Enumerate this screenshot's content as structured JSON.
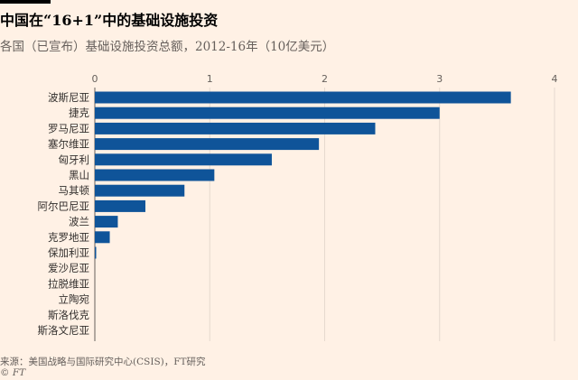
{
  "header": {
    "title": "中国在“16+1”中的基础设施投资",
    "subtitle": "各国（已宣布）基础设施投资总额，2012-16年（10亿美元）"
  },
  "footer": {
    "source": "来源：美国战略与国际研究中心(CSIS)，FT研究",
    "credit": "© FT"
  },
  "colors": {
    "bar": "#0f5499",
    "background": "#fff1e5",
    "grid": "#e6d9ce"
  },
  "chart_data": {
    "type": "bar",
    "orientation": "horizontal",
    "title": "中国在“16+1”中的基础设施投资",
    "subtitle": "各国（已宣布）基础设施投资总额，2012-16年（10亿美元）",
    "xlabel": "",
    "ylabel": "",
    "xlim": [
      0,
      4
    ],
    "xticks": [
      0,
      1,
      2,
      3,
      4
    ],
    "xtick_labels": [
      "0",
      "1",
      "2",
      "3",
      "4"
    ],
    "axis_position": "top",
    "grid": true,
    "categories": [
      "波斯尼亚",
      "捷克",
      "罗马尼亚",
      "塞尔维亚",
      "匈牙利",
      "黑山",
      "马其顿",
      "阿尔巴尼亚",
      "波兰",
      "克罗地亚",
      "保加利亚",
      "爱沙尼亚",
      "拉脱维亚",
      "立陶宛",
      "斯洛伐克",
      "斯洛文尼亚"
    ],
    "values": [
      3.62,
      3.0,
      2.44,
      1.95,
      1.54,
      1.04,
      0.78,
      0.44,
      0.2,
      0.13,
      0.01,
      0,
      0,
      0,
      0,
      0
    ]
  }
}
